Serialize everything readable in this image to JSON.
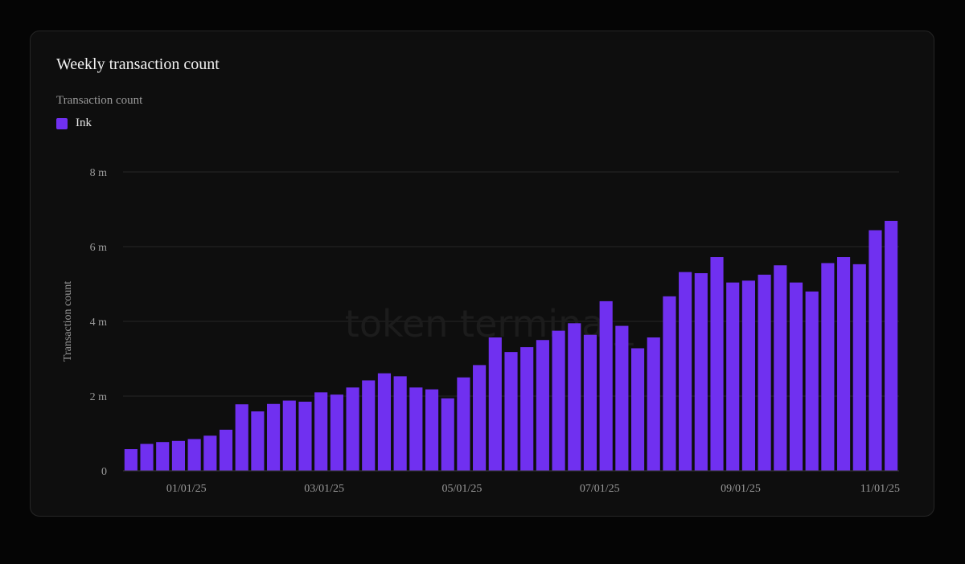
{
  "card": {
    "title": "Weekly transaction count",
    "subtitle": "Transaction count",
    "watermark": "token terminal_"
  },
  "colors": {
    "bar": "#7030f0",
    "grid": "#262626",
    "background": "#0e0e0e"
  },
  "chart_data": {
    "type": "bar",
    "ylabel": "Transaction count",
    "ylim": [
      0,
      8000000
    ],
    "y_ticks": [
      {
        "value": 0,
        "label": "0"
      },
      {
        "value": 2000000,
        "label": "2 m"
      },
      {
        "value": 4000000,
        "label": "4 m"
      },
      {
        "value": 6000000,
        "label": "6 m"
      },
      {
        "value": 8000000,
        "label": "8 m"
      }
    ],
    "x_ticks": [
      {
        "index": 3.5,
        "label": "01/01/25"
      },
      {
        "index": 12.2,
        "label": "03/01/25"
      },
      {
        "index": 20.9,
        "label": "05/01/25"
      },
      {
        "index": 29.6,
        "label": "07/01/25"
      },
      {
        "index": 38.5,
        "label": "09/01/25"
      },
      {
        "index": 47.3,
        "label": "11/01/25"
      }
    ],
    "grid": true,
    "legend_position": "top-left",
    "series": [
      {
        "name": "Ink",
        "values": [
          580000,
          720000,
          770000,
          800000,
          850000,
          940000,
          1100000,
          1780000,
          1590000,
          1790000,
          1880000,
          1850000,
          2100000,
          2040000,
          2230000,
          2420000,
          2610000,
          2530000,
          2230000,
          2180000,
          1940000,
          2500000,
          2830000,
          3570000,
          3180000,
          3310000,
          3500000,
          3750000,
          3950000,
          3640000,
          4540000,
          3880000,
          3280000,
          3570000,
          4670000,
          5320000,
          5290000,
          5720000,
          5040000,
          5090000,
          5250000,
          5500000,
          5040000,
          4800000,
          5560000,
          5720000,
          5530000,
          6440000,
          6690000
        ]
      }
    ]
  }
}
